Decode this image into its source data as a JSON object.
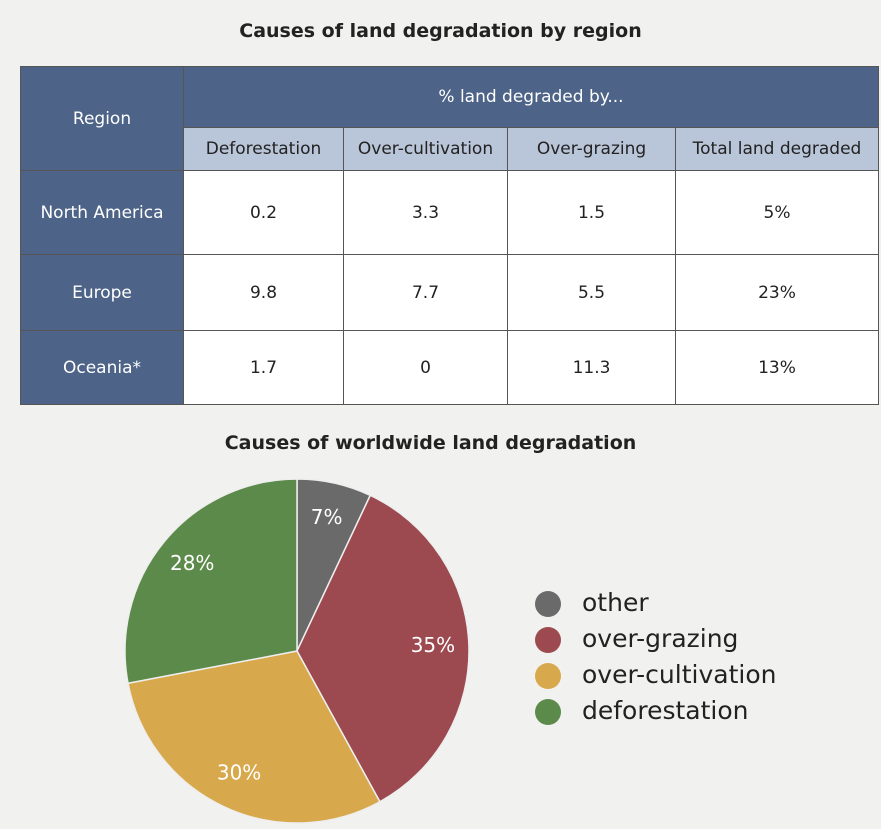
{
  "table": {
    "title": "Causes of land degradation by region",
    "header": [
      "Region",
      "% land degraded by..."
    ],
    "columns": [
      "Deforestation",
      "Over-cultivation",
      "Over-grazing",
      "Total land degraded"
    ],
    "rows": [
      [
        "North America",
        0.2,
        3.3,
        1.5,
        "5%"
      ],
      [
        "Europe",
        9.8,
        7.7,
        5.5,
        "23%"
      ],
      [
        "Oceania*",
        1.7,
        0,
        11.3,
        "13%"
      ]
    ]
  },
  "chart_data": {
    "type": "pie",
    "title": "Causes of worldwide land degradation",
    "categories": [
      "other",
      "over-grazing",
      "over-cultivation",
      "deforestation"
    ],
    "values": [
      7,
      35,
      30,
      28
    ],
    "value_labels": [
      "7%",
      "35%",
      "30%",
      "28%"
    ],
    "colors": [
      "#6a6a6a",
      "#9c4a50",
      "#d8a94c",
      "#5c8a4a"
    ]
  }
}
